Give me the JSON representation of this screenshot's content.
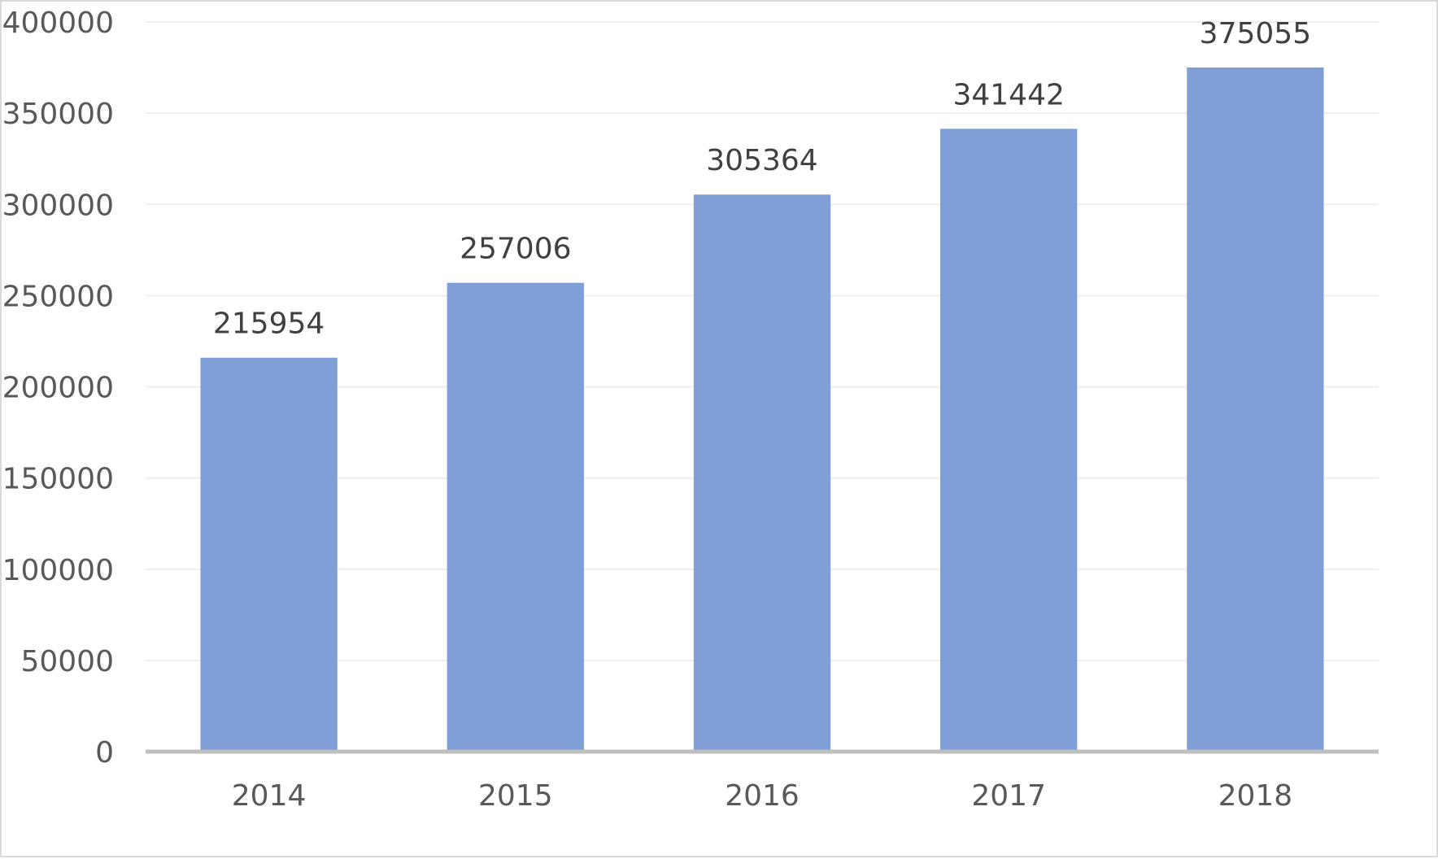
{
  "chart_data": {
    "type": "bar",
    "title": "",
    "xlabel": "",
    "ylabel": "",
    "categories": [
      "2014",
      "2015",
      "2016",
      "2017",
      "2018"
    ],
    "values": [
      215954,
      257006,
      305364,
      341442,
      375055
    ],
    "data_labels": [
      "215954",
      "257006",
      "305364",
      "341442",
      "375055"
    ],
    "ylim": [
      0,
      400000
    ],
    "yticks": [
      0,
      50000,
      100000,
      150000,
      200000,
      250000,
      300000,
      350000,
      400000
    ],
    "ytick_labels": [
      "0",
      "50000",
      "100000",
      "150000",
      "200000",
      "250000",
      "300000",
      "350000",
      "400000"
    ],
    "grid": true,
    "legend": "none",
    "bar_color": "#7f9fd6",
    "axis_color": "#bfbfbf",
    "gridline_color": "#eeeeee",
    "tick_label_color": "#595959",
    "data_label_color": "#404040"
  }
}
